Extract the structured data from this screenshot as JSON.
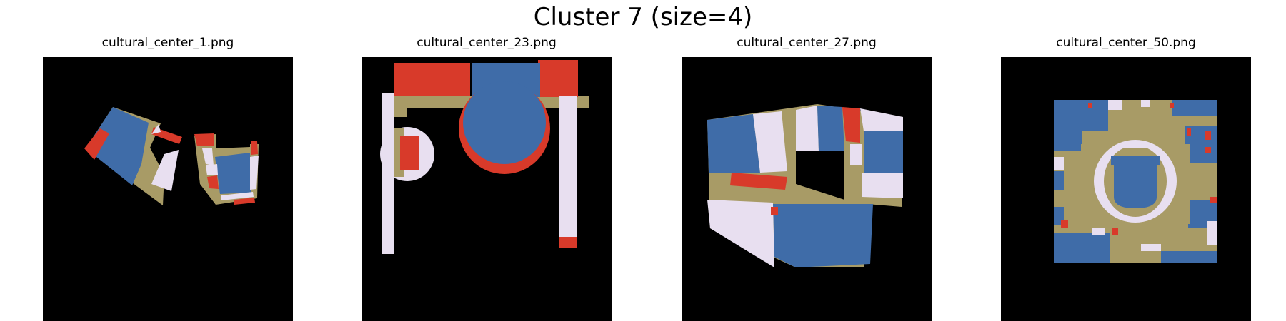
{
  "figure": {
    "title": "Cluster 7 (size=4)"
  },
  "colors": {
    "background": "#000000",
    "blue": "#3f6ca8",
    "red": "#d83a2a",
    "tan": "#a89b66",
    "lavender": "#e8dff0"
  },
  "panels": [
    {
      "title": "cultural_center_1.png"
    },
    {
      "title": "cultural_center_23.png"
    },
    {
      "title": "cultural_center_27.png"
    },
    {
      "title": "cultural_center_50.png"
    }
  ]
}
